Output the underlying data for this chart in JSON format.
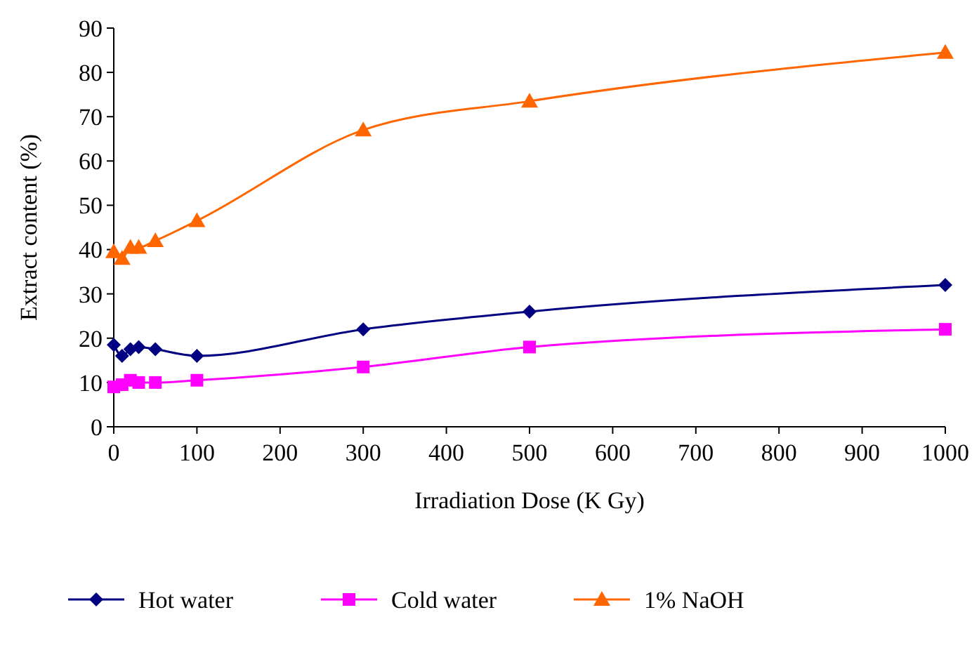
{
  "chart_data": {
    "type": "line",
    "xlabel": "Irradiation Dose (K Gy)",
    "ylabel": "Extract content (%)",
    "x": [
      0,
      10,
      20,
      30,
      50,
      100,
      300,
      500,
      1000
    ],
    "series": [
      {
        "name": "Hot water",
        "color": "#000080",
        "marker": "diamond",
        "values": [
          18.5,
          16,
          17.5,
          18,
          17.5,
          16,
          22,
          26,
          32
        ]
      },
      {
        "name": "Cold water",
        "color": "#ff00ff",
        "marker": "square",
        "values": [
          9,
          9.5,
          10.5,
          10,
          10,
          10.5,
          13.5,
          18,
          22
        ]
      },
      {
        "name": "1% NaOH",
        "color": "#ff6600",
        "marker": "triangle",
        "values": [
          39.5,
          38,
          40.5,
          40.5,
          42,
          46.5,
          67,
          73.5,
          84.5
        ]
      }
    ],
    "xlim": [
      0,
      1000
    ],
    "xticks": [
      0,
      100,
      200,
      300,
      400,
      500,
      600,
      700,
      800,
      900,
      1000
    ],
    "ylim": [
      0,
      90
    ],
    "yticks": [
      0,
      10,
      20,
      30,
      40,
      50,
      60,
      70,
      80,
      90
    ],
    "grid": false,
    "legend": "bottom",
    "line_style": "solid"
  }
}
